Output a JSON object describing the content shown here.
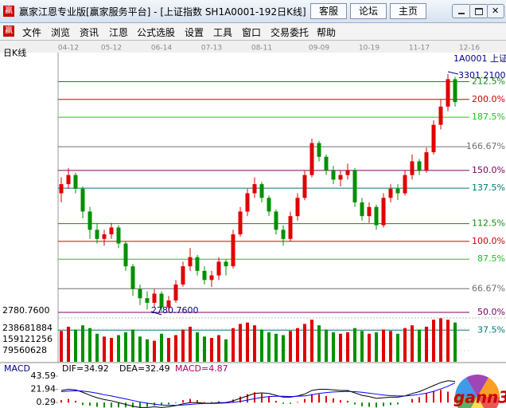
{
  "window": {
    "title": "赢家江恩专业版[赢家服务平台] - [上证指数  SH1A0001-192日K线]",
    "icon": "赢",
    "buttons": [
      "客服",
      "论坛",
      "主页"
    ],
    "menu": [
      "文件",
      "浏览",
      "资讯",
      "江恩",
      "公式选股",
      "设置",
      "工具",
      "窗口",
      "交易委托",
      "帮助"
    ]
  },
  "chart_data": [
    {
      "type": "candlestick",
      "title": "日K线",
      "symbol": "1A0001 上证",
      "up_color": "#e00000",
      "down_color": "#009000",
      "categories": [
        null,
        "04-12",
        null,
        null,
        null,
        null,
        null,
        "05-12",
        null,
        null,
        null,
        null,
        null,
        null,
        "06-14",
        null,
        null,
        null,
        null,
        null,
        null,
        "07-13",
        null,
        null,
        null,
        null,
        null,
        null,
        "08-11",
        null,
        null,
        null,
        null,
        null,
        null,
        null,
        "09-09",
        null,
        null,
        null,
        null,
        null,
        null,
        "10-19",
        null,
        null,
        null,
        null,
        null,
        null,
        "11-17",
        null,
        null,
        null,
        null,
        null,
        null,
        "12-16"
      ],
      "candles": [
        [
          3040,
          3060,
          3075,
          3020
        ],
        [
          3060,
          3080,
          3095,
          3050
        ],
        [
          3080,
          3050,
          3085,
          3040
        ],
        [
          3050,
          3000,
          3055,
          2985
        ],
        [
          3000,
          2960,
          3010,
          2940
        ],
        [
          2960,
          2940,
          2975,
          2930
        ],
        [
          2940,
          2950,
          2960,
          2925
        ],
        [
          2950,
          2965,
          2975,
          2940
        ],
        [
          2965,
          2930,
          2970,
          2920
        ],
        [
          2930,
          2880,
          2935,
          2870
        ],
        [
          2880,
          2830,
          2885,
          2815
        ],
        [
          2830,
          2810,
          2840,
          2795
        ],
        [
          2810,
          2800,
          2825,
          2785
        ],
        [
          2800,
          2820,
          2830,
          2790
        ],
        [
          2820,
          2790,
          2825,
          2780.76
        ],
        [
          2790,
          2805,
          2815,
          2783
        ],
        [
          2805,
          2840,
          2850,
          2800
        ],
        [
          2840,
          2880,
          2890,
          2835
        ],
        [
          2880,
          2900,
          2920,
          2870
        ],
        [
          2900,
          2870,
          2905,
          2860
        ],
        [
          2870,
          2850,
          2880,
          2840
        ],
        [
          2850,
          2860,
          2870,
          2835
        ],
        [
          2860,
          2890,
          2900,
          2850
        ],
        [
          2890,
          2880,
          2895,
          2860
        ],
        [
          2880,
          2950,
          2960,
          2875
        ],
        [
          2950,
          3000,
          3010,
          2945
        ],
        [
          3000,
          3040,
          3050,
          2990
        ],
        [
          3040,
          3060,
          3075,
          3030
        ],
        [
          3060,
          3030,
          3065,
          3020
        ],
        [
          3030,
          3000,
          3035,
          2990
        ],
        [
          3000,
          2960,
          3005,
          2950
        ],
        [
          2960,
          2940,
          2970,
          2925
        ],
        [
          2940,
          2990,
          3000,
          2935
        ],
        [
          2990,
          3030,
          3040,
          2980
        ],
        [
          3030,
          3080,
          3090,
          3025
        ],
        [
          3080,
          3150,
          3160,
          3075
        ],
        [
          3150,
          3120,
          3155,
          3110
        ],
        [
          3120,
          3090,
          3125,
          3080
        ],
        [
          3090,
          3070,
          3100,
          3060
        ],
        [
          3070,
          3080,
          3090,
          3055
        ],
        [
          3080,
          3090,
          3105,
          3070
        ],
        [
          3090,
          3020,
          3095,
          3010
        ],
        [
          3020,
          2990,
          3030,
          2980
        ],
        [
          2990,
          3010,
          3020,
          2975
        ],
        [
          3010,
          2970,
          3015,
          2960
        ],
        [
          2970,
          3030,
          3040,
          2965
        ],
        [
          3030,
          3050,
          3060,
          3020
        ],
        [
          3050,
          3040,
          3060,
          3025
        ],
        [
          3040,
          3080,
          3090,
          3035
        ],
        [
          3080,
          3110,
          3125,
          3070
        ],
        [
          3110,
          3090,
          3115,
          3080
        ],
        [
          3090,
          3130,
          3140,
          3085
        ],
        [
          3130,
          3190,
          3200,
          3125
        ],
        [
          3190,
          3230,
          3245,
          3180
        ],
        [
          3230,
          3290,
          3301.21,
          3220
        ],
        [
          3290,
          3240,
          3295,
          3230
        ],
        null,
        null
      ],
      "ylim": [
        2768.5,
        3372.8
      ],
      "yticks": [
        {
          "value": 2780.76,
          "label": "2780.7600"
        }
      ],
      "annotations": [
        {
          "text": "3301.2100",
          "value": 3301.21
        },
        {
          "text": "2780.7600",
          "value": 2780.76
        }
      ],
      "y2lim": [
        46.63,
        240.87
      ],
      "levels": [
        {
          "value": 212.5,
          "label": "212.5%",
          "color": "#138a13"
        },
        {
          "value": 200,
          "label": "200.0%",
          "color": "#d00000"
        },
        {
          "value": 187.5,
          "label": "187.5%",
          "color": "#22c022"
        },
        {
          "value": 166.67,
          "label": "166.67%",
          "color": "#707070"
        },
        {
          "value": 150,
          "label": "150.0%",
          "color": "#800060"
        },
        {
          "value": 137.5,
          "label": "137.5%",
          "color": "#007878"
        },
        {
          "value": 112.5,
          "label": "112.5%",
          "color": "#138a13"
        },
        {
          "value": 100,
          "label": "100.0%",
          "color": "#d00000"
        },
        {
          "value": 87.5,
          "label": "87.5%",
          "color": "#22c022"
        },
        {
          "value": 66.67,
          "label": "66.67%",
          "color": "#707070"
        },
        {
          "value": 50,
          "label": "50.0%",
          "color": "#800060"
        },
        {
          "value": 37.5,
          "label": "37.5%",
          "color": "#007878"
        }
      ]
    },
    {
      "type": "bar",
      "values": [
        220000000,
        250000000,
        230000000,
        260000000,
        240000000,
        200000000,
        180000000,
        170000000,
        190000000,
        210000000,
        230000000,
        180000000,
        160000000,
        150000000,
        200000000,
        170000000,
        190000000,
        230000000,
        250000000,
        210000000,
        180000000,
        170000000,
        190000000,
        160000000,
        240000000,
        270000000,
        280000000,
        260000000,
        230000000,
        210000000,
        200000000,
        190000000,
        220000000,
        240000000,
        270000000,
        300000000,
        260000000,
        230000000,
        210000000,
        200000000,
        210000000,
        240000000,
        220000000,
        200000000,
        210000000,
        230000000,
        220000000,
        200000000,
        240000000,
        260000000,
        230000000,
        250000000,
        300000000,
        310000000,
        300000000,
        280000000,
        null,
        null
      ],
      "ylim": [
        0,
        318242512
      ],
      "yticks": [
        79560628,
        159121256,
        238681884
      ]
    },
    {
      "type": "macd",
      "title": "MACD",
      "legend": [
        "DIF=34.92",
        "DEA=32.49",
        "MACD=4.87"
      ],
      "series": [
        {
          "color": "#000000",
          "values": [
            20,
            22,
            21,
            17,
            12,
            8,
            5,
            3,
            0,
            -3,
            -6,
            -8,
            -8,
            -7,
            -8,
            -7,
            -5,
            -2,
            0,
            0,
            -1,
            -1,
            0,
            0,
            3,
            7,
            11,
            15,
            16,
            15,
            12,
            9,
            9,
            11,
            14,
            20,
            22,
            22,
            21,
            20,
            20,
            16,
            12,
            10,
            7,
            8,
            9,
            9,
            11,
            15,
            18,
            23,
            28,
            33,
            36,
            34.92,
            null,
            null
          ]
        },
        {
          "color": "#0000ff",
          "values": [
            18,
            19,
            19.5,
            19,
            17.5,
            15.5,
            13,
            11,
            8.5,
            6,
            3.5,
            1,
            -1,
            -2.5,
            -4,
            -4.5,
            -4.5,
            -4,
            -3,
            -2,
            -1.5,
            -1.5,
            -1,
            -0.5,
            0.5,
            2,
            4,
            6.5,
            8.5,
            10,
            10.5,
            10.5,
            10,
            10.5,
            11,
            13,
            15,
            16.5,
            17.5,
            18,
            18.5,
            18,
            17,
            15.5,
            14,
            12.5,
            11.5,
            11,
            11,
            12,
            13.5,
            15.5,
            18.5,
            22.5,
            27,
            32.49,
            null,
            null
          ]
        }
      ],
      "histogram": [
        4,
        6,
        3,
        -4,
        -5,
        -7,
        -8,
        -8,
        -8,
        -8,
        -8,
        -8,
        -7,
        -5,
        -4,
        -3,
        -1,
        4,
        6,
        4,
        1,
        1,
        2,
        1,
        5,
        10,
        14,
        17,
        15,
        10,
        3,
        -2,
        -2,
        1,
        6,
        14,
        14,
        11,
        7,
        4,
        3,
        -3,
        -6,
        -7,
        -8,
        -6,
        -4,
        -3,
        0,
        6,
        9,
        15,
        19,
        21,
        18,
        4.87,
        null,
        null
      ],
      "ylim": [
        -8.9,
        62
      ],
      "yticks": [
        0.29,
        21.94,
        43.59
      ],
      "logo": "gann3"
    }
  ]
}
